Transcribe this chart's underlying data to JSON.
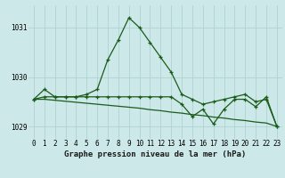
{
  "title": "Graphe pression niveau de la mer (hPa)",
  "background_color": "#cce8e8",
  "grid_color": "#aacece",
  "line_color": "#1a5c1a",
  "x_values": [
    0,
    1,
    2,
    3,
    4,
    5,
    6,
    7,
    8,
    9,
    10,
    11,
    12,
    13,
    14,
    15,
    16,
    17,
    18,
    19,
    20,
    21,
    22,
    23
  ],
  "series1": [
    1029.55,
    1029.75,
    1029.6,
    1029.6,
    1029.6,
    1029.65,
    1029.75,
    1030.35,
    1030.75,
    1031.2,
    1031.0,
    1030.7,
    1030.4,
    1030.1,
    1029.65,
    1029.55,
    1029.45,
    1029.5,
    1029.55,
    1029.6,
    1029.65,
    1029.5,
    1029.55,
    1029.0
  ],
  "series2": [
    1029.55,
    1029.6,
    1029.6,
    1029.6,
    1029.6,
    1029.6,
    1029.6,
    1029.6,
    1029.6,
    1029.6,
    1029.6,
    1029.6,
    1029.6,
    1029.6,
    1029.45,
    1029.2,
    1029.35,
    1029.05,
    1029.35,
    1029.55,
    1029.55,
    1029.4,
    1029.6,
    1029.0
  ],
  "series3": [
    1029.55,
    1029.55,
    1029.53,
    1029.51,
    1029.49,
    1029.47,
    1029.45,
    1029.43,
    1029.41,
    1029.39,
    1029.37,
    1029.34,
    1029.32,
    1029.29,
    1029.27,
    1029.24,
    1029.22,
    1029.19,
    1029.17,
    1029.14,
    1029.12,
    1029.09,
    1029.07,
    1029.0
  ],
  "ylim": [
    1028.75,
    1031.45
  ],
  "yticks": [
    1029,
    1030,
    1031
  ],
  "xticks": [
    0,
    1,
    2,
    3,
    4,
    5,
    6,
    7,
    8,
    9,
    10,
    11,
    12,
    13,
    14,
    15,
    16,
    17,
    18,
    19,
    20,
    21,
    22,
    23
  ],
  "title_fontsize": 6.5,
  "tick_fontsize": 5.5
}
